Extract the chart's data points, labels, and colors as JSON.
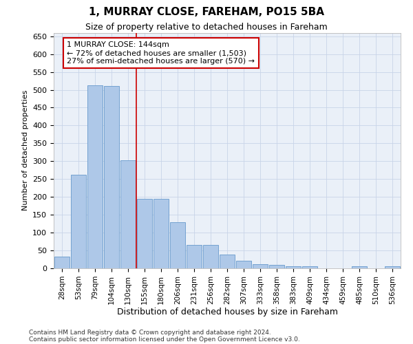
{
  "title1": "1, MURRAY CLOSE, FAREHAM, PO15 5BA",
  "title2": "Size of property relative to detached houses in Fareham",
  "xlabel": "Distribution of detached houses by size in Fareham",
  "ylabel": "Number of detached properties",
  "categories": [
    "28sqm",
    "53sqm",
    "79sqm",
    "104sqm",
    "130sqm",
    "155sqm",
    "180sqm",
    "206sqm",
    "231sqm",
    "256sqm",
    "282sqm",
    "307sqm",
    "333sqm",
    "358sqm",
    "383sqm",
    "409sqm",
    "434sqm",
    "459sqm",
    "485sqm",
    "510sqm",
    "536sqm"
  ],
  "values": [
    32,
    263,
    512,
    510,
    302,
    195,
    195,
    130,
    65,
    65,
    38,
    22,
    12,
    10,
    5,
    5,
    0,
    0,
    5,
    0,
    5
  ],
  "bar_color": "#aec8e8",
  "bar_edge_color": "#6699cc",
  "vline_color": "#cc0000",
  "annotation_text": "1 MURRAY CLOSE: 144sqm\n← 72% of detached houses are smaller (1,503)\n27% of semi-detached houses are larger (570) →",
  "annotation_box_color": "#ffffff",
  "annotation_box_edge": "#cc0000",
  "ylim": [
    0,
    660
  ],
  "yticks": [
    0,
    50,
    100,
    150,
    200,
    250,
    300,
    350,
    400,
    450,
    500,
    550,
    600,
    650
  ],
  "grid_color": "#c8d4e8",
  "footnote1": "Contains HM Land Registry data © Crown copyright and database right 2024.",
  "footnote2": "Contains public sector information licensed under the Open Government Licence v3.0.",
  "bg_color": "#eaf0f8",
  "fig_bg_color": "#ffffff",
  "title1_fontsize": 11,
  "title2_fontsize": 9,
  "ylabel_fontsize": 8,
  "xlabel_fontsize": 9
}
